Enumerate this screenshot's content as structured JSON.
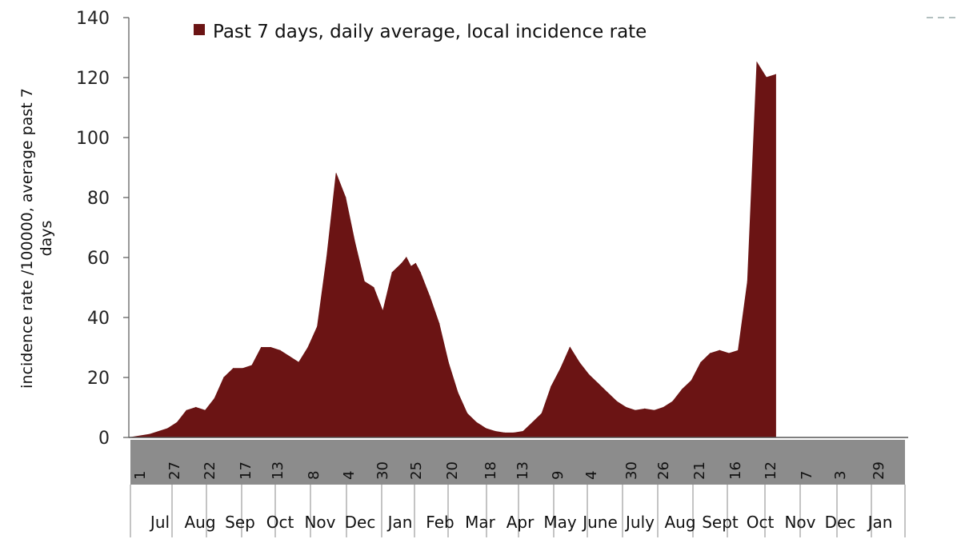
{
  "chart_data": {
    "type": "area",
    "legend": {
      "label": "Past 7 days, daily average, local incidence rate",
      "color": "#6b1414",
      "placement": "top-left"
    },
    "ylabel_line1": "incidence rate /100000, average past 7",
    "ylabel_line2": "days",
    "ylim": [
      0,
      140
    ],
    "yticks": [
      0,
      20,
      40,
      60,
      80,
      100,
      120,
      140
    ],
    "grid": false,
    "x_tick_labels": [
      "1",
      "27",
      "22",
      "17",
      "13",
      "8",
      "4",
      "30",
      "25",
      "20",
      "18",
      "13",
      "9",
      "4",
      "30",
      "26",
      "21",
      "16",
      "12",
      "7",
      "3",
      "29"
    ],
    "months": [
      "Jul",
      "Aug",
      "Sep",
      "Oct",
      "Nov",
      "Dec",
      "Jan",
      "Feb",
      "Mar",
      "Apr",
      "May",
      "June",
      "July",
      "Aug",
      "Sept",
      "Oct",
      "Nov",
      "Dec",
      "Jan"
    ],
    "x_range_weeks": [
      0,
      83
    ],
    "series": [
      {
        "color": "#6b1414",
        "x_weeks": [
          0,
          2,
          4,
          5,
          6,
          7,
          8,
          9,
          10,
          11,
          12,
          13,
          14,
          15,
          16,
          17,
          18,
          19,
          20,
          21,
          22,
          23,
          24,
          25,
          26,
          27,
          28,
          29,
          29.5,
          30,
          30.5,
          31,
          32,
          33,
          34,
          35,
          36,
          37,
          37.5,
          38,
          39,
          40,
          41,
          42,
          43,
          44,
          45,
          46,
          47,
          48,
          49,
          50,
          51,
          52,
          53,
          54,
          55,
          56,
          57,
          58,
          59,
          60,
          61,
          62,
          63,
          64,
          65,
          66,
          67,
          68,
          69,
          70,
          71,
          72,
          73,
          74,
          75,
          76,
          77,
          78,
          79,
          80,
          81,
          81.5,
          82,
          83
        ],
        "values": [
          0,
          1,
          3,
          5,
          9,
          10,
          9,
          13,
          20,
          23,
          23,
          24,
          30,
          30,
          29,
          27,
          25,
          30,
          37,
          60,
          88,
          80,
          65,
          52,
          50,
          42,
          55,
          58,
          60,
          57,
          58,
          55,
          47,
          38,
          25,
          15,
          8,
          5,
          4,
          3,
          2,
          1.5,
          1.5,
          2,
          5,
          8,
          17,
          23,
          30,
          25,
          21,
          18,
          15,
          12,
          10,
          9,
          9.5,
          9,
          10,
          12,
          16,
          19,
          25,
          28,
          29,
          28,
          29,
          52,
          125,
          120,
          121,
          0,
          0,
          0,
          0,
          0,
          0,
          0,
          0,
          0,
          0,
          0,
          0,
          0,
          0,
          0
        ]
      }
    ]
  }
}
